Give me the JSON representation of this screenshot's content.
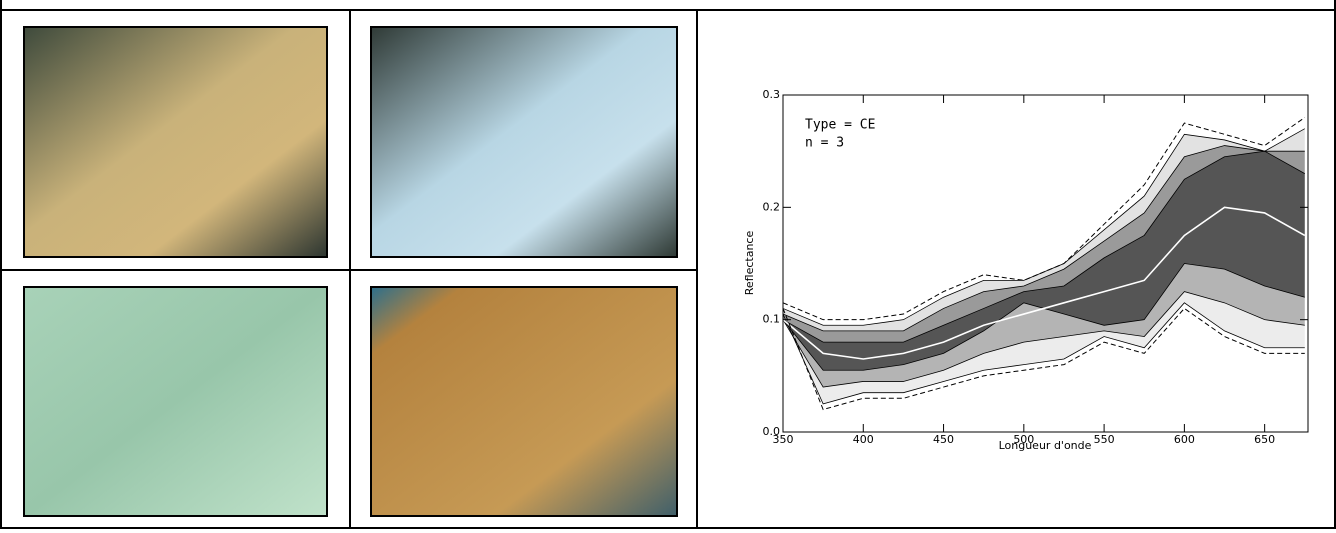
{
  "chart_data": {
    "type": "area",
    "ylabel": "Reflectance",
    "xlabel": "Longueur d'onde",
    "annotations": [
      "Type = CE",
      "n = 3"
    ],
    "x": [
      350,
      375,
      400,
      425,
      450,
      475,
      500,
      525,
      550,
      575,
      600,
      625,
      650,
      675
    ],
    "xlim": [
      350,
      677
    ],
    "xticks": [
      350,
      400,
      450,
      500,
      550,
      600,
      650
    ],
    "ylim": [
      0,
      0.3
    ],
    "yticks": [
      {
        "value": 0,
        "label": "0.0"
      },
      0.1,
      0.2,
      0.3
    ],
    "bands": {
      "colors": [
        "#ececec",
        "#b4b4b4",
        "#555555",
        "#9a9a9a",
        "#e2e2e2"
      ],
      "edges": [
        [
          0.105,
          0.025,
          0.035,
          0.035,
          0.045,
          0.055,
          0.06,
          0.065,
          0.085,
          0.075,
          0.115,
          0.09,
          0.075,
          0.075
        ],
        [
          0.1,
          0.04,
          0.045,
          0.045,
          0.055,
          0.07,
          0.08,
          0.085,
          0.09,
          0.085,
          0.125,
          0.115,
          0.1,
          0.095
        ],
        [
          0.1,
          0.055,
          0.055,
          0.06,
          0.07,
          0.09,
          0.115,
          0.105,
          0.095,
          0.1,
          0.15,
          0.145,
          0.13,
          0.12
        ],
        [
          0.1,
          0.08,
          0.08,
          0.08,
          0.095,
          0.11,
          0.125,
          0.13,
          0.155,
          0.175,
          0.225,
          0.245,
          0.25,
          0.23
        ],
        [
          0.105,
          0.09,
          0.09,
          0.09,
          0.11,
          0.125,
          0.13,
          0.145,
          0.17,
          0.195,
          0.245,
          0.255,
          0.25,
          0.25
        ],
        [
          0.11,
          0.095,
          0.095,
          0.1,
          0.12,
          0.135,
          0.135,
          0.15,
          0.18,
          0.21,
          0.265,
          0.26,
          0.25,
          0.27
        ]
      ]
    },
    "series": [
      {
        "color": "#ffffff",
        "dash": false,
        "values": [
          0.1,
          0.07,
          0.065,
          0.07,
          0.08,
          0.095,
          0.105,
          0.115,
          0.125,
          0.135,
          0.175,
          0.2,
          0.195,
          0.175
        ]
      },
      {
        "color": "#000000",
        "dash": true,
        "values": [
          0.115,
          0.1,
          0.1,
          0.105,
          0.125,
          0.14,
          0.135,
          0.15,
          0.185,
          0.22,
          0.275,
          0.265,
          0.255,
          0.28
        ]
      },
      {
        "color": "#000000",
        "dash": true,
        "values": [
          0.11,
          0.02,
          0.03,
          0.03,
          0.04,
          0.05,
          0.055,
          0.06,
          0.08,
          0.07,
          0.11,
          0.085,
          0.07,
          0.07
        ]
      }
    ]
  }
}
